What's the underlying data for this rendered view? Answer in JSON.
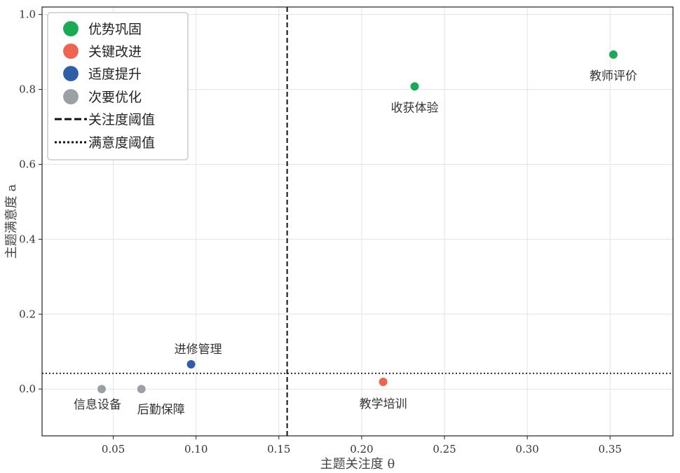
{
  "chart_data": {
    "type": "scatter",
    "title": "",
    "xlabel": "主题关注度 θ",
    "ylabel": "主题满意度 a",
    "xlim": [
      0.007,
      0.388
    ],
    "ylim": [
      -0.125,
      1.02
    ],
    "x_ticks": [
      "0.05",
      "0.10",
      "0.15",
      "0.20",
      "0.25",
      "0.30",
      "0.35"
    ],
    "y_ticks": [
      "0.0",
      "0.2",
      "0.4",
      "0.6",
      "0.8",
      "1.0"
    ],
    "grid": true,
    "legend_position": "top-left",
    "categories": [
      {
        "name": "优势巩固",
        "color": "#1aaa55"
      },
      {
        "name": "关键改进",
        "color": "#ef6351"
      },
      {
        "name": "适度提升",
        "color": "#2f5ea8"
      },
      {
        "name": "次要优化",
        "color": "#9aa0a6"
      }
    ],
    "thresholds": {
      "attention": {
        "name": "关注度阈值",
        "value": 0.155,
        "style": "dashed"
      },
      "satisfaction": {
        "name": "满意度阈值",
        "value": 0.042,
        "style": "dotted"
      }
    },
    "points": [
      {
        "label": "教师评价",
        "x": 0.352,
        "y": 0.893,
        "category": "优势巩固"
      },
      {
        "label": "收获体验",
        "x": 0.232,
        "y": 0.808,
        "category": "优势巩固"
      },
      {
        "label": "教学培训",
        "x": 0.213,
        "y": 0.019,
        "category": "关键改进"
      },
      {
        "label": "进修管理",
        "x": 0.097,
        "y": 0.066,
        "category": "适度提升"
      },
      {
        "label": "信息设备",
        "x": 0.043,
        "y": 0.0,
        "category": "次要优化"
      },
      {
        "label": "后勤保障",
        "x": 0.067,
        "y": 0.0,
        "category": "次要优化"
      }
    ]
  }
}
